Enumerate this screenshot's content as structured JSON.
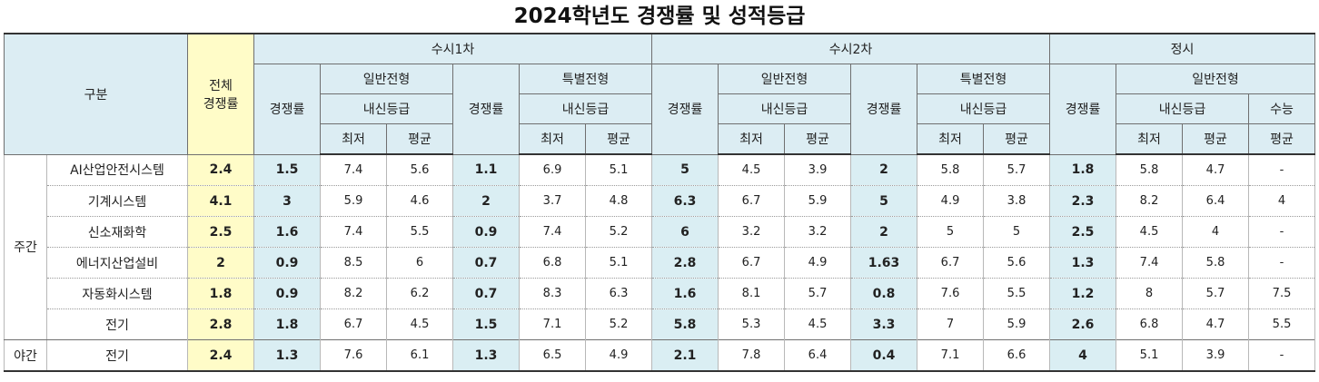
{
  "title": "2024학년도 경쟁률 및 성적등급",
  "header": {
    "gubun": "구분",
    "total_line1": "전체",
    "total_line2": "경쟁률",
    "susi1": "수시1차",
    "susi2": "수시2차",
    "jeongsi": "정시",
    "ilban": "일반전형",
    "teukbyeol": "특별전형",
    "gyeongjaeng": "경쟁률",
    "naesin": "내신등급",
    "suneung": "수능",
    "choejeo": "최저",
    "pyeonggyun": "평균"
  },
  "groups": {
    "day": "주간",
    "night": "야간"
  },
  "rows": [
    {
      "dept": "AI산업안전시스템",
      "total": "2.4",
      "s1_rate": "1.5",
      "s1_g_min": "7.4",
      "s1_g_avg": "5.6",
      "s1_s_rate": "1.1",
      "s1_s_min": "6.9",
      "s1_s_avg": "5.1",
      "s2_rate": "5",
      "s2_g_min": "4.5",
      "s2_g_avg": "3.9",
      "s2_s_rate": "2",
      "s2_s_min": "5.8",
      "s2_s_avg": "5.7",
      "j_rate": "1.8",
      "j_min": "5.8",
      "j_avg": "4.7",
      "j_suneung": "-"
    },
    {
      "dept": "기계시스템",
      "total": "4.1",
      "s1_rate": "3",
      "s1_g_min": "5.9",
      "s1_g_avg": "4.6",
      "s1_s_rate": "2",
      "s1_s_min": "3.7",
      "s1_s_avg": "4.8",
      "s2_rate": "6.3",
      "s2_g_min": "6.7",
      "s2_g_avg": "5.9",
      "s2_s_rate": "5",
      "s2_s_min": "4.9",
      "s2_s_avg": "3.8",
      "j_rate": "2.3",
      "j_min": "8.2",
      "j_avg": "6.4",
      "j_suneung": "4"
    },
    {
      "dept": "신소재화학",
      "total": "2.5",
      "s1_rate": "1.6",
      "s1_g_min": "7.4",
      "s1_g_avg": "5.5",
      "s1_s_rate": "0.9",
      "s1_s_min": "7.4",
      "s1_s_avg": "5.2",
      "s2_rate": "6",
      "s2_g_min": "3.2",
      "s2_g_avg": "3.2",
      "s2_s_rate": "2",
      "s2_s_min": "5",
      "s2_s_avg": "5",
      "j_rate": "2.5",
      "j_min": "4.5",
      "j_avg": "4",
      "j_suneung": "-"
    },
    {
      "dept": "에너지산업설비",
      "total": "2",
      "s1_rate": "0.9",
      "s1_g_min": "8.5",
      "s1_g_avg": "6",
      "s1_s_rate": "0.7",
      "s1_s_min": "6.8",
      "s1_s_avg": "5.1",
      "s2_rate": "2.8",
      "s2_g_min": "6.7",
      "s2_g_avg": "4.9",
      "s2_s_rate": "1.63",
      "s2_s_min": "6.7",
      "s2_s_avg": "5.6",
      "j_rate": "1.3",
      "j_min": "7.4",
      "j_avg": "5.8",
      "j_suneung": "-"
    },
    {
      "dept": "자동화시스템",
      "total": "1.8",
      "s1_rate": "0.9",
      "s1_g_min": "8.2",
      "s1_g_avg": "6.2",
      "s1_s_rate": "0.7",
      "s1_s_min": "8.3",
      "s1_s_avg": "6.3",
      "s2_rate": "1.6",
      "s2_g_min": "8.1",
      "s2_g_avg": "5.7",
      "s2_s_rate": "0.8",
      "s2_s_min": "7.6",
      "s2_s_avg": "5.5",
      "j_rate": "1.2",
      "j_min": "8",
      "j_avg": "5.7",
      "j_suneung": "7.5"
    },
    {
      "dept": "전기",
      "total": "2.8",
      "s1_rate": "1.8",
      "s1_g_min": "6.7",
      "s1_g_avg": "4.5",
      "s1_s_rate": "1.5",
      "s1_s_min": "7.1",
      "s1_s_avg": "5.2",
      "s2_rate": "5.8",
      "s2_g_min": "5.3",
      "s2_g_avg": "4.5",
      "s2_s_rate": "3.3",
      "s2_s_min": "7",
      "s2_s_avg": "5.9",
      "j_rate": "2.6",
      "j_min": "6.8",
      "j_avg": "4.7",
      "j_suneung": "5.5"
    },
    {
      "dept": "전기",
      "total": "2.4",
      "s1_rate": "1.3",
      "s1_g_min": "7.6",
      "s1_g_avg": "6.1",
      "s1_s_rate": "1.3",
      "s1_s_min": "6.5",
      "s1_s_avg": "4.9",
      "s2_rate": "2.1",
      "s2_g_min": "7.8",
      "s2_g_avg": "6.4",
      "s2_s_rate": "0.4",
      "s2_s_min": "7.1",
      "s2_s_avg": "6.6",
      "j_rate": "4",
      "j_min": "5.1",
      "j_avg": "3.9",
      "j_suneung": "-"
    }
  ],
  "colors": {
    "header_bg": "#dcedf3",
    "rate_bg": "#daeef3",
    "total_bg": "#fffcc8"
  }
}
